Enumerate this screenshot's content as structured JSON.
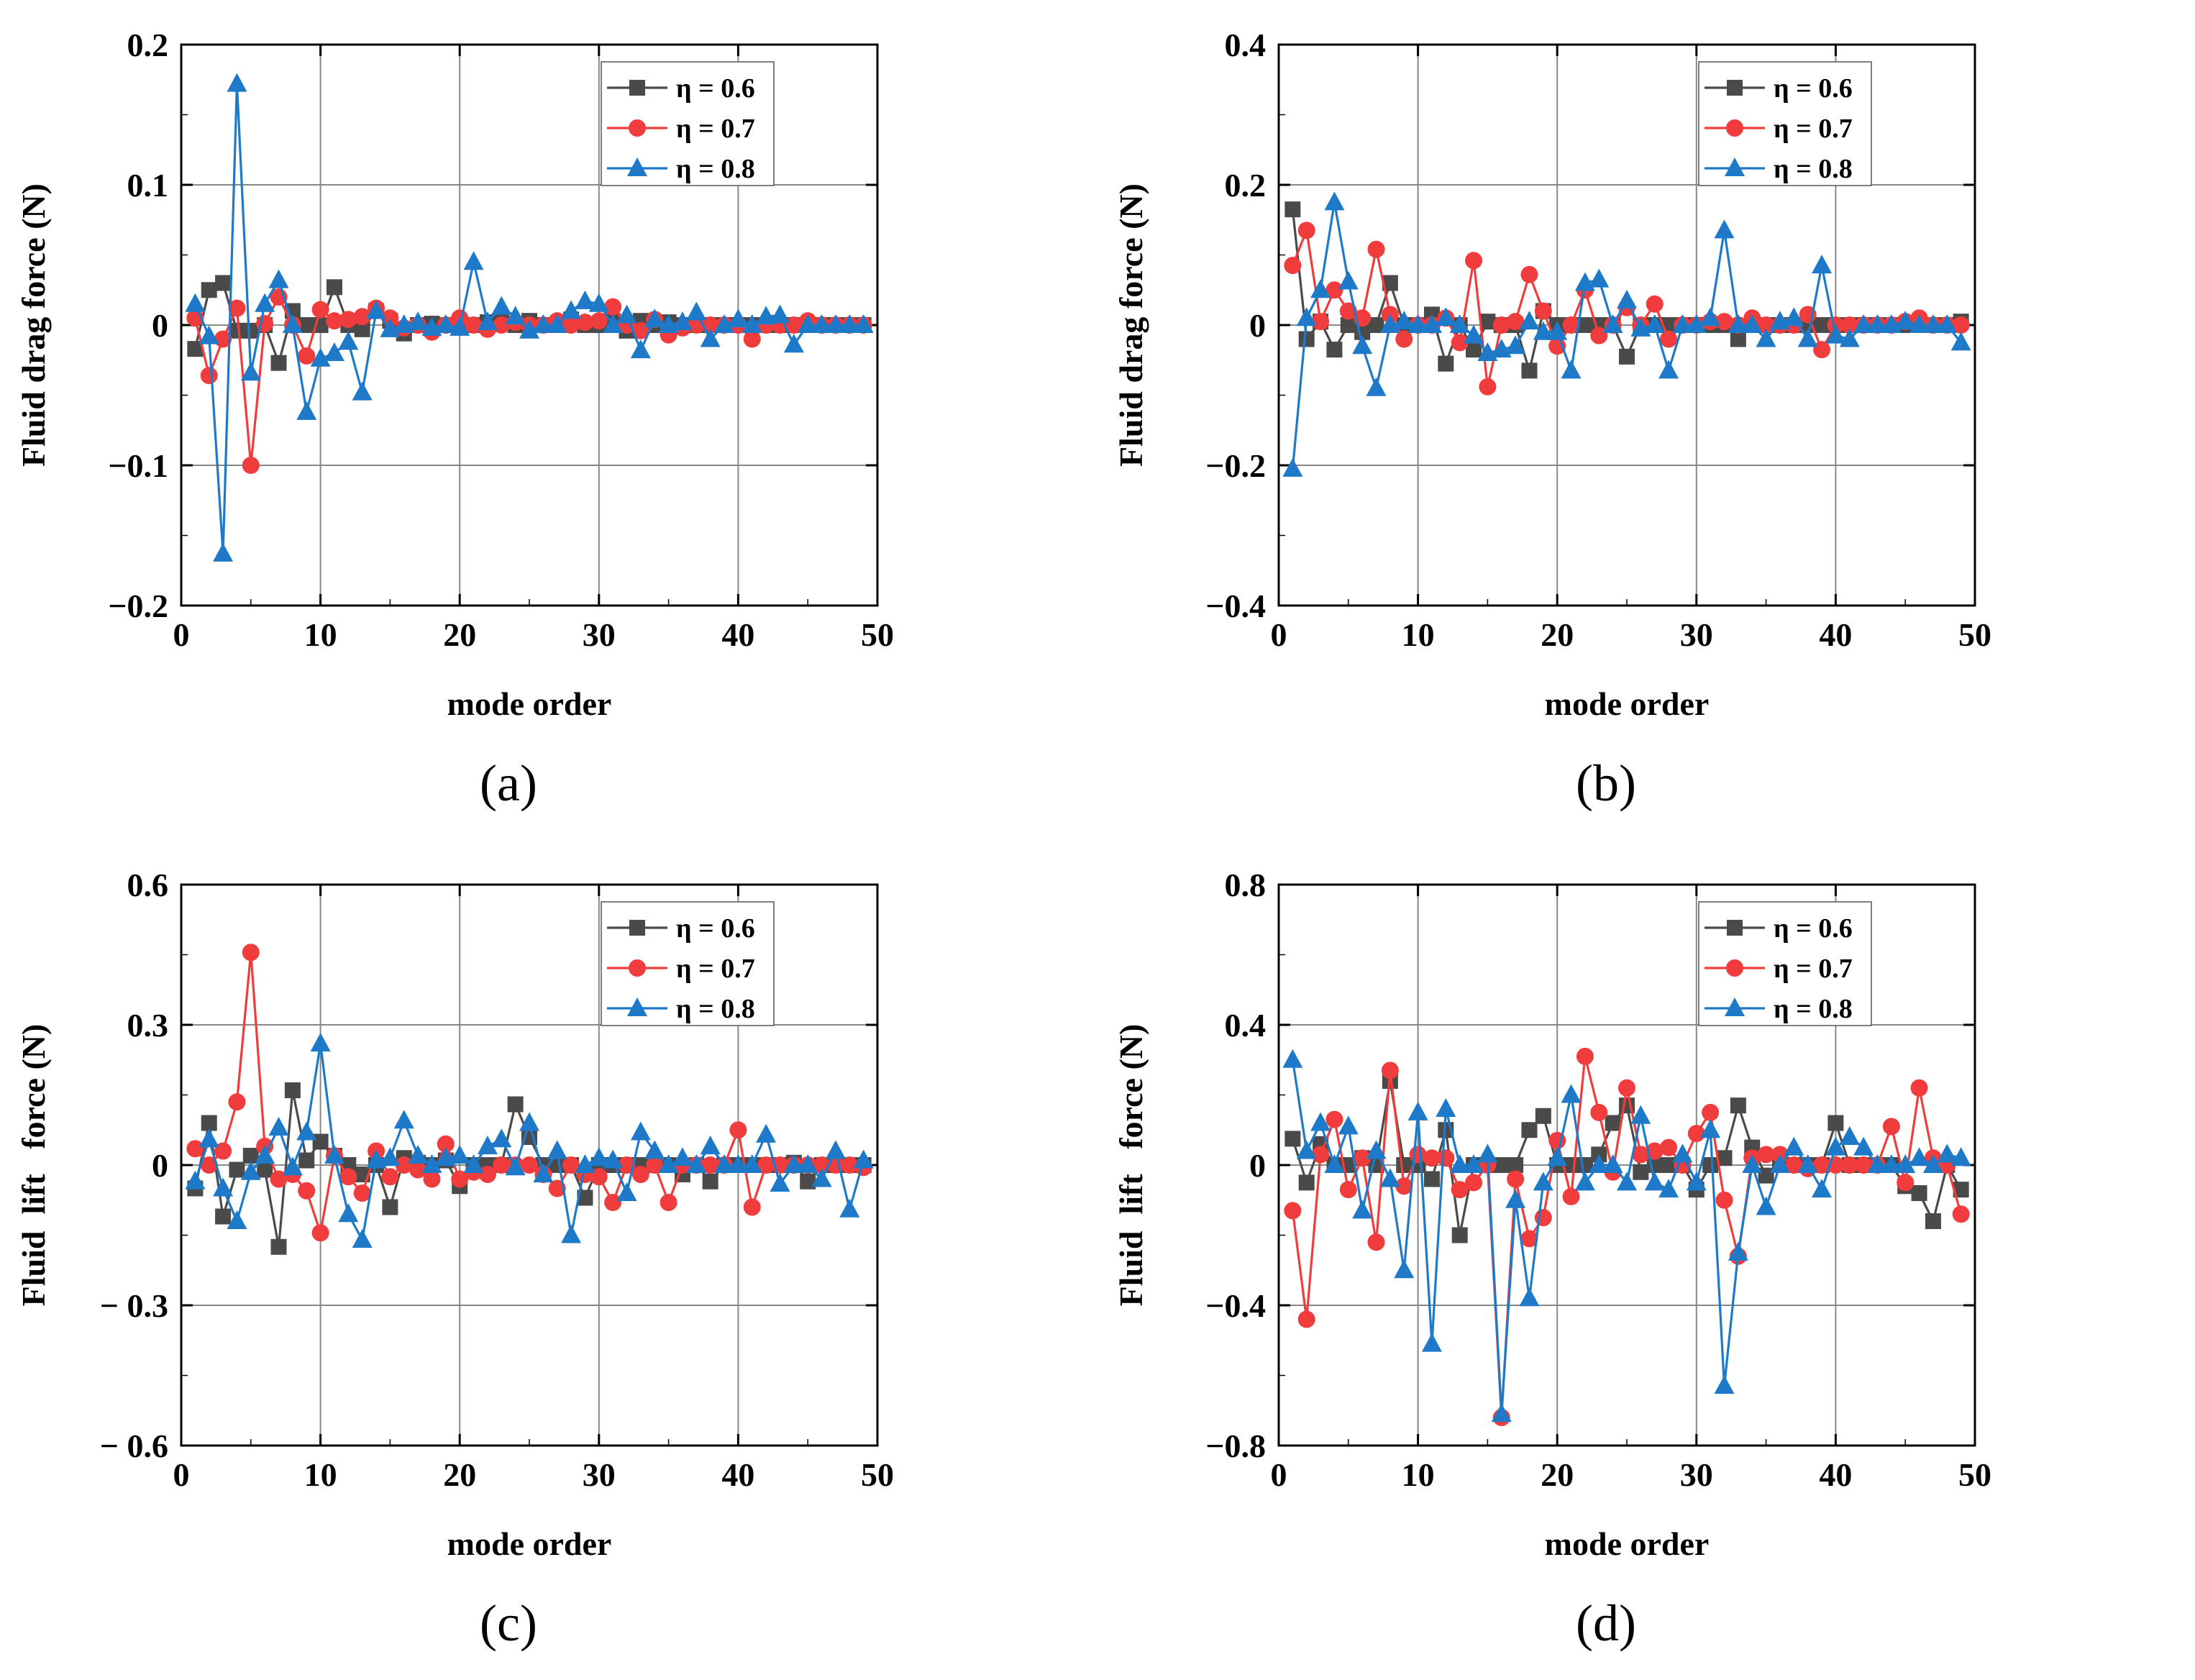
{
  "colors": {
    "s06": "#4a4a4a",
    "s07": "#f03c3c",
    "s08": "#1e7ac8",
    "grid": "#888888"
  },
  "chart_data": [
    {
      "id": "a",
      "type": "line",
      "caption": "(a)",
      "xlabel": "mode order",
      "ylabel": "Fluid drag force (N)",
      "xlim": [
        0,
        50
      ],
      "ylim": [
        -0.2,
        0.2
      ],
      "xticks": [
        0,
        10,
        20,
        30,
        40,
        50
      ],
      "yticks": [
        -0.2,
        -0.1,
        0,
        0.1,
        0.2
      ],
      "xtick_labels": [
        "0",
        "10",
        "20",
        "30",
        "40",
        "50"
      ],
      "ytick_labels": [
        "−0.2",
        "−0.1",
        "0",
        "0.1",
        "0.2"
      ],
      "legend": [
        "η = 0.6",
        "η = 0.7",
        "η = 0.8"
      ],
      "legend_position": "top-right",
      "x": [
        1,
        2,
        3,
        4,
        5,
        6,
        7,
        8,
        9,
        10,
        11,
        12,
        13,
        14,
        15,
        16,
        17,
        18,
        19,
        20,
        21,
        22,
        23,
        24,
        25,
        26,
        27,
        28,
        29,
        30,
        31,
        32,
        33,
        34,
        35,
        36,
        37,
        38,
        39,
        40,
        41,
        42,
        43,
        44,
        45,
        46,
        47,
        48,
        49
      ],
      "series": [
        {
          "name": "η = 0.6",
          "marker": "square",
          "values": [
            -0.017,
            0.025,
            0.03,
            -0.004,
            -0.004,
            0.0,
            -0.027,
            0.01,
            0.0,
            0.0,
            0.027,
            0.0,
            -0.003,
            0.01,
            0.003,
            -0.006,
            0.0,
            0.001,
            0.0,
            0.0,
            0.0,
            0.002,
            0.002,
            0.0,
            0.003,
            0.0,
            0.0,
            0.004,
            0.0,
            0.0,
            0.003,
            -0.004,
            0.003,
            0.0,
            0.002,
            0.0,
            0.0,
            0.0,
            0.0,
            0.0,
            0.0,
            0.0,
            0.0,
            0.0,
            0.0,
            0.0,
            0.0,
            0.0,
            0.0
          ]
        },
        {
          "name": "η = 0.7",
          "marker": "circle",
          "values": [
            0.005,
            -0.036,
            -0.01,
            0.012,
            -0.1,
            0.001,
            0.02,
            0.0,
            -0.022,
            0.011,
            0.003,
            0.004,
            0.006,
            0.012,
            0.005,
            -0.002,
            0.0,
            -0.005,
            0.0,
            0.005,
            0.0,
            -0.003,
            0.0,
            0.002,
            0.0,
            0.0,
            0.003,
            0.0,
            0.002,
            0.003,
            0.013,
            0.0,
            -0.004,
            0.004,
            -0.007,
            -0.002,
            0.0,
            0.0,
            0.0,
            0.0,
            -0.01,
            0.0,
            0.0,
            0.0,
            0.003,
            0.0,
            0.0,
            0.0,
            0.0
          ]
        },
        {
          "name": "η = 0.8",
          "marker": "triangle",
          "values": [
            0.015,
            -0.008,
            -0.163,
            0.172,
            -0.034,
            0.015,
            0.032,
            0.0,
            -0.062,
            -0.024,
            -0.02,
            -0.012,
            -0.048,
            0.01,
            -0.003,
            0.0,
            0.002,
            -0.002,
            0.0,
            -0.002,
            0.045,
            0.002,
            0.013,
            0.006,
            -0.004,
            0.0,
            0.0,
            0.01,
            0.017,
            0.015,
            0.0,
            0.007,
            -0.018,
            0.004,
            0.0,
            0.002,
            0.009,
            -0.01,
            0.0,
            0.004,
            0.0,
            0.006,
            0.007,
            -0.014,
            0.0,
            0.0,
            0.0,
            0.0,
            0.0
          ]
        }
      ]
    },
    {
      "id": "b",
      "type": "line",
      "caption": "(b)",
      "xlabel": "mode order",
      "ylabel": "Fluid drag force (N)",
      "xlim": [
        0,
        50
      ],
      "ylim": [
        -0.4,
        0.4
      ],
      "xticks": [
        0,
        10,
        20,
        30,
        40,
        50
      ],
      "yticks": [
        -0.4,
        -0.2,
        0,
        0.2,
        0.4
      ],
      "xtick_labels": [
        "0",
        "10",
        "20",
        "30",
        "40",
        "50"
      ],
      "ytick_labels": [
        "−0.4",
        "−0.2",
        "0",
        "0.2",
        "0.4"
      ],
      "legend": [
        "η = 0.6",
        "η = 0.7",
        "η = 0.8"
      ],
      "legend_position": "top-right",
      "x": [
        1,
        2,
        3,
        4,
        5,
        6,
        7,
        8,
        9,
        10,
        11,
        12,
        13,
        14,
        15,
        16,
        17,
        18,
        19,
        20,
        21,
        22,
        23,
        24,
        25,
        26,
        27,
        28,
        29,
        30,
        31,
        32,
        33,
        34,
        35,
        36,
        37,
        38,
        39,
        40,
        41,
        42,
        43,
        44,
        45,
        46,
        47,
        48,
        49
      ],
      "series": [
        {
          "name": "η = 0.6",
          "marker": "square",
          "values": [
            0.165,
            -0.02,
            0.005,
            -0.035,
            0.0,
            -0.01,
            0.0,
            0.06,
            0.0,
            0.0,
            0.015,
            -0.055,
            0.0,
            -0.035,
            0.005,
            0.0,
            0.0,
            -0.065,
            0.02,
            0.0,
            0.0,
            0.0,
            0.0,
            0.0,
            -0.045,
            0.0,
            0.0,
            0.0,
            0.0,
            0.0,
            0.0,
            0.0,
            -0.02,
            0.0,
            0.0,
            0.0,
            0.0,
            0.0,
            0.0,
            0.0,
            0.0,
            0.0,
            0.0,
            0.0,
            0.0,
            0.0,
            0.0,
            0.0,
            0.005
          ]
        },
        {
          "name": "η = 0.7",
          "marker": "circle",
          "values": [
            0.085,
            0.135,
            0.005,
            0.05,
            0.02,
            0.01,
            0.108,
            0.015,
            -0.02,
            0.0,
            0.0,
            0.01,
            -0.025,
            0.092,
            -0.088,
            0.0,
            0.005,
            0.072,
            0.02,
            -0.03,
            0.0,
            0.05,
            -0.015,
            0.0,
            0.025,
            0.0,
            0.03,
            -0.02,
            0.0,
            0.0,
            0.005,
            0.005,
            0.0,
            0.01,
            0.0,
            0.0,
            0.0,
            0.015,
            -0.035,
            0.0,
            0.0,
            0.0,
            0.0,
            0.0,
            0.005,
            0.01,
            0.0,
            0.0,
            0.0
          ]
        },
        {
          "name": "η = 0.8",
          "marker": "triangle",
          "values": [
            -0.205,
            0.01,
            0.05,
            0.175,
            0.062,
            -0.03,
            -0.09,
            0.0,
            0.005,
            0.0,
            0.0,
            0.01,
            0.0,
            -0.015,
            -0.04,
            -0.035,
            -0.03,
            0.005,
            -0.01,
            -0.01,
            -0.065,
            0.06,
            0.065,
            0.0,
            0.035,
            -0.005,
            0.0,
            -0.065,
            0.0,
            0.0,
            0.01,
            0.135,
            0.0,
            0.0,
            -0.02,
            0.005,
            0.01,
            -0.02,
            0.085,
            -0.015,
            -0.02,
            0.0,
            0.0,
            0.0,
            0.005,
            0.0,
            0.0,
            0.0,
            -0.025
          ]
        }
      ]
    },
    {
      "id": "c",
      "type": "line",
      "caption": "(c)",
      "xlabel": "mode order",
      "ylabel": "Fluid  lift   force (N)",
      "xlim": [
        0,
        50
      ],
      "ylim": [
        -0.6,
        0.6
      ],
      "xticks": [
        0,
        10,
        20,
        30,
        40,
        50
      ],
      "yticks": [
        -0.6,
        -0.3,
        0,
        0.3,
        0.6
      ],
      "xtick_labels": [
        "0",
        "10",
        "20",
        "30",
        "40",
        "50"
      ],
      "ytick_labels": [
        "− 0.6",
        "− 0.3",
        "0",
        "0.3",
        "0.6"
      ],
      "legend": [
        "η = 0.6",
        "η = 0.7",
        "η = 0.8"
      ],
      "legend_position": "top-right",
      "x": [
        1,
        2,
        3,
        4,
        5,
        6,
        7,
        8,
        9,
        10,
        11,
        12,
        13,
        14,
        15,
        16,
        17,
        18,
        19,
        20,
        21,
        22,
        23,
        24,
        25,
        26,
        27,
        28,
        29,
        30,
        31,
        32,
        33,
        34,
        35,
        36,
        37,
        38,
        39,
        40,
        41,
        42,
        43,
        44,
        45,
        46,
        47,
        48,
        49
      ],
      "series": [
        {
          "name": "η = 0.6",
          "marker": "square",
          "values": [
            -0.05,
            0.09,
            -0.11,
            -0.01,
            0.02,
            -0.01,
            -0.175,
            0.16,
            0.01,
            0.05,
            0.02,
            0.0,
            -0.02,
            0.0,
            -0.09,
            0.015,
            0.005,
            0.0,
            0.01,
            -0.045,
            0.0,
            0.0,
            0.0,
            0.13,
            0.06,
            0.0,
            0.0,
            0.0,
            -0.07,
            0.0,
            0.0,
            0.0,
            0.0,
            0.0,
            0.0,
            -0.02,
            0.0,
            -0.035,
            0.0,
            0.0,
            0.0,
            0.0,
            0.0,
            0.005,
            -0.035,
            0.0,
            0.0,
            0.0,
            0.0
          ]
        },
        {
          "name": "η = 0.7",
          "marker": "circle",
          "values": [
            0.035,
            0.0,
            0.03,
            0.135,
            0.455,
            0.04,
            -0.03,
            -0.02,
            -0.055,
            -0.145,
            0.02,
            -0.025,
            -0.06,
            0.03,
            -0.025,
            0.0,
            -0.01,
            -0.03,
            0.045,
            -0.03,
            -0.015,
            -0.02,
            0.0,
            0.0,
            0.0,
            -0.02,
            -0.05,
            0.0,
            -0.02,
            -0.025,
            -0.08,
            0.0,
            -0.02,
            0.0,
            -0.08,
            0.0,
            0.0,
            0.0,
            0.0,
            0.075,
            -0.09,
            0.0,
            0.0,
            0.0,
            0.0,
            0.0,
            0.0,
            0.0,
            -0.005
          ]
        },
        {
          "name": "η = 0.8",
          "marker": "triangle",
          "values": [
            -0.035,
            0.055,
            -0.05,
            -0.12,
            -0.015,
            0.02,
            0.08,
            -0.005,
            0.07,
            0.26,
            0.02,
            -0.105,
            -0.16,
            0.01,
            0.015,
            0.095,
            0.02,
            0.0,
            0.015,
            0.02,
            0.0,
            0.04,
            0.055,
            -0.005,
            0.09,
            -0.02,
            0.03,
            -0.15,
            0.0,
            0.015,
            0.01,
            -0.06,
            0.07,
            0.03,
            0.0,
            0.015,
            0.0,
            0.04,
            0.0,
            0.0,
            0.0,
            0.065,
            -0.04,
            0.0,
            0.0,
            -0.03,
            0.03,
            -0.095,
            0.01
          ]
        }
      ]
    },
    {
      "id": "d",
      "type": "line",
      "caption": "(d)",
      "xlabel": "mode order",
      "ylabel": "Fluid  lift   force (N)",
      "xlim": [
        0,
        50
      ],
      "ylim": [
        -0.8,
        0.8
      ],
      "xticks": [
        0,
        10,
        20,
        30,
        40,
        50
      ],
      "yticks": [
        -0.8,
        -0.4,
        0,
        0.4,
        0.8
      ],
      "xtick_labels": [
        "0",
        "10",
        "20",
        "30",
        "40",
        "50"
      ],
      "ytick_labels": [
        "−0.8",
        "−0.4",
        "0",
        "0.4",
        "0.8"
      ],
      "legend": [
        "η = 0.6",
        "η = 0.7",
        "η = 0.8"
      ],
      "legend_position": "top-right",
      "x": [
        1,
        2,
        3,
        4,
        5,
        6,
        7,
        8,
        9,
        10,
        11,
        12,
        13,
        14,
        15,
        16,
        17,
        18,
        19,
        20,
        21,
        22,
        23,
        24,
        25,
        26,
        27,
        28,
        29,
        30,
        31,
        32,
        33,
        34,
        35,
        36,
        37,
        38,
        39,
        40,
        41,
        42,
        43,
        44,
        45,
        46,
        47,
        48,
        49
      ],
      "series": [
        {
          "name": "η = 0.6",
          "marker": "square",
          "values": [
            0.075,
            -0.05,
            0.06,
            0.0,
            0.0,
            0.02,
            0.0,
            0.24,
            0.0,
            0.0,
            -0.04,
            0.1,
            -0.2,
            0.0,
            0.0,
            0.0,
            0.0,
            0.1,
            0.14,
            0.0,
            0.0,
            0.0,
            0.03,
            0.12,
            0.17,
            -0.02,
            0.0,
            0.0,
            0.0,
            -0.07,
            0.0,
            0.02,
            0.17,
            0.05,
            -0.03,
            0.0,
            0.0,
            0.0,
            0.0,
            0.12,
            0.0,
            0.0,
            0.0,
            0.0,
            -0.06,
            -0.08,
            -0.16,
            0.0,
            -0.07
          ]
        },
        {
          "name": "η = 0.7",
          "marker": "circle",
          "values": [
            -0.13,
            -0.44,
            0.03,
            0.13,
            -0.07,
            0.02,
            -0.22,
            0.27,
            -0.06,
            0.03,
            0.02,
            0.02,
            -0.07,
            -0.05,
            0.0,
            -0.72,
            -0.04,
            -0.21,
            -0.15,
            0.07,
            -0.09,
            0.31,
            0.15,
            -0.02,
            0.22,
            0.03,
            0.04,
            0.05,
            0.0,
            0.09,
            0.15,
            -0.1,
            -0.26,
            0.02,
            0.03,
            0.03,
            0.0,
            -0.01,
            0.0,
            0.0,
            0.0,
            0.0,
            0.0,
            0.11,
            -0.05,
            0.22,
            0.02,
            0.0,
            -0.14
          ]
        },
        {
          "name": "η = 0.8",
          "marker": "triangle",
          "values": [
            0.3,
            0.04,
            0.12,
            0.0,
            0.11,
            -0.13,
            0.04,
            -0.04,
            -0.3,
            0.15,
            -0.51,
            0.16,
            0.0,
            0.0,
            0.03,
            -0.71,
            -0.1,
            -0.38,
            -0.05,
            0.02,
            0.2,
            -0.05,
            0.0,
            0.0,
            -0.05,
            0.14,
            -0.05,
            -0.07,
            0.03,
            -0.05,
            0.1,
            -0.63,
            -0.25,
            0.0,
            -0.12,
            0.0,
            0.05,
            0.0,
            -0.07,
            0.05,
            0.08,
            0.05,
            0.0,
            0.0,
            0.0,
            0.02,
            0.0,
            0.03,
            0.02
          ]
        }
      ]
    }
  ]
}
